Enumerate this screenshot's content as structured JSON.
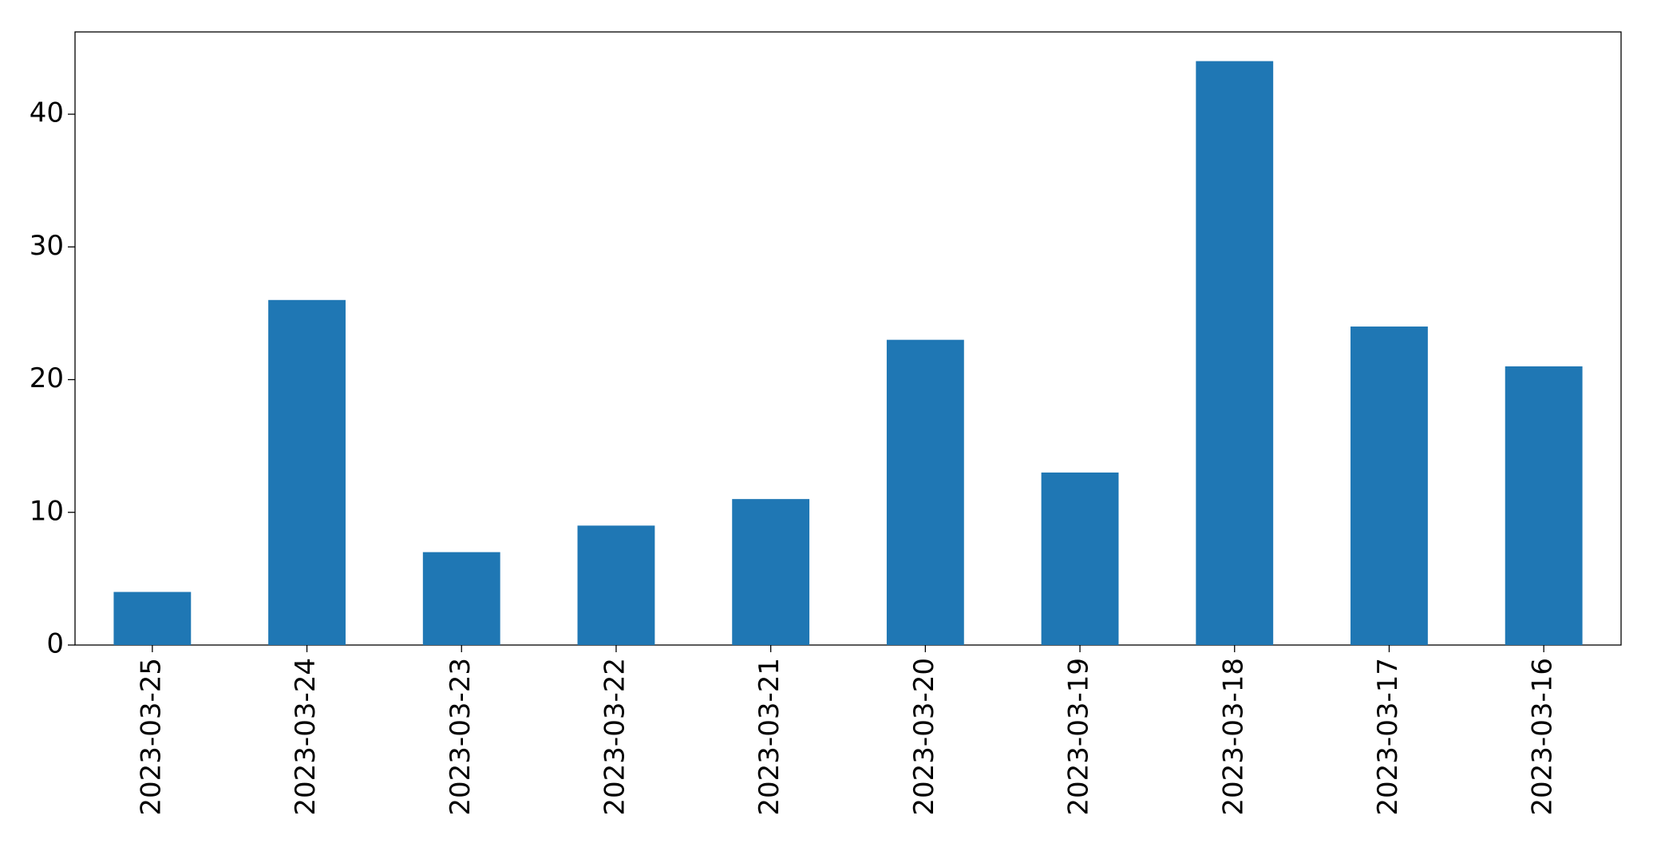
{
  "chart_data": {
    "type": "bar",
    "categories": [
      "2023-03-25",
      "2023-03-24",
      "2023-03-23",
      "2023-03-22",
      "2023-03-21",
      "2023-03-20",
      "2023-03-19",
      "2023-03-18",
      "2023-03-17",
      "2023-03-16"
    ],
    "values": [
      4,
      26,
      7,
      9,
      11,
      23,
      13,
      44,
      24,
      21
    ],
    "color": "#1f77b4",
    "ylim": [
      0,
      46.2
    ],
    "yticks": [
      0,
      10,
      20,
      30,
      40
    ],
    "grid": false
  }
}
